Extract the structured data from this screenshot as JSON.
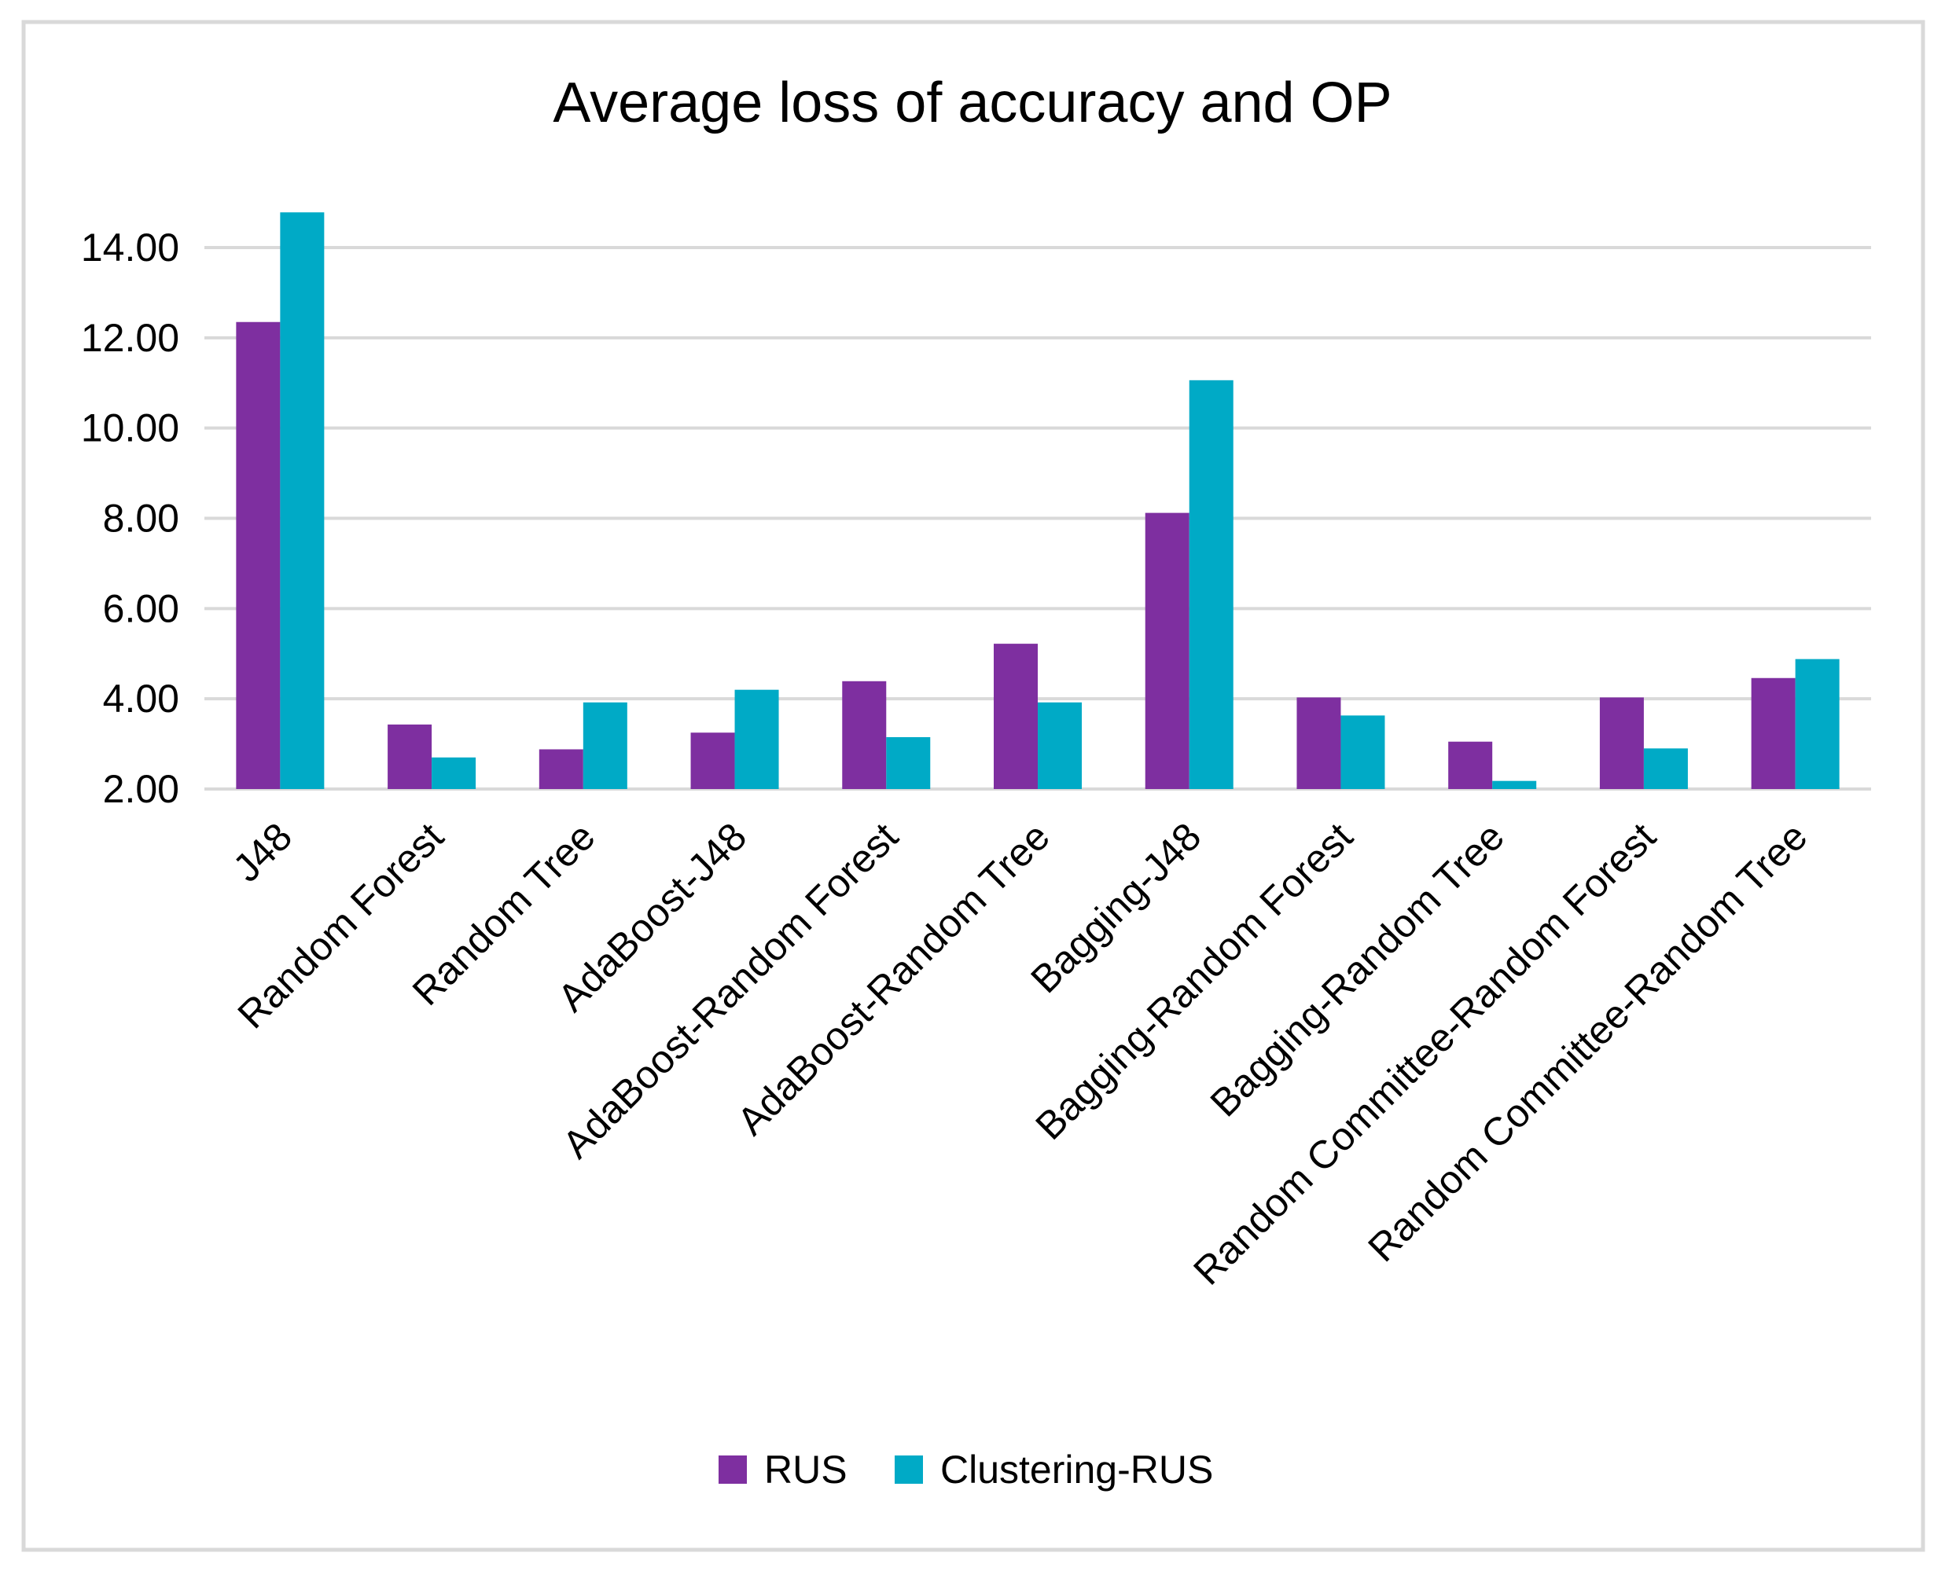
{
  "chart_data": {
    "type": "bar",
    "title": "Average loss of accuracy and OP",
    "xlabel": "",
    "ylabel": "",
    "ylim": [
      2,
      14.8
    ],
    "yticks": [
      "2.00",
      "4.00",
      "6.00",
      "8.00",
      "10.00",
      "12.00",
      "14.00"
    ],
    "ytick_values": [
      2,
      4,
      6,
      8,
      10,
      12,
      14
    ],
    "grid": true,
    "legend_position": "bottom",
    "categories": [
      "J48",
      "Random Forest",
      "Random Tree",
      "AdaBoost-J48",
      "AdaBoost-Random Forest",
      "AdaBoost-Random Tree",
      "Bagging-J48",
      "Bagging-Random Forest",
      "Bagging-Random Tree",
      "Random Committee-Random Forest",
      "Random Committee-Random Tree"
    ],
    "series": [
      {
        "name": "RUS",
        "color": "#7e2fa0",
        "values": [
          12.35,
          3.43,
          2.88,
          3.25,
          4.39,
          5.22,
          8.12,
          4.03,
          3.05,
          4.03,
          4.46
        ]
      },
      {
        "name": "Clustering-RUS",
        "color": "#00aac6",
        "values": [
          14.78,
          2.7,
          3.92,
          4.2,
          3.15,
          3.92,
          11.06,
          3.63,
          2.18,
          2.9,
          4.88
        ]
      }
    ]
  }
}
